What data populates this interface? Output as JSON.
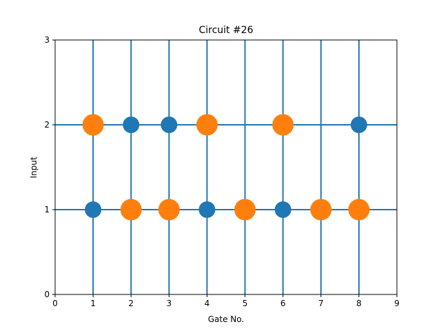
{
  "chart_data": {
    "type": "scatter",
    "title": "Circuit #26",
    "xlabel": "Gate No.",
    "ylabel": "Input",
    "xlim": [
      0,
      9
    ],
    "ylim": [
      0,
      3
    ],
    "xticks": [
      "0",
      "1",
      "2",
      "3",
      "4",
      "5",
      "6",
      "7",
      "8",
      "9"
    ],
    "yticks": [
      "0",
      "1",
      "2",
      "3"
    ],
    "wire_color": "#1f77b4",
    "wires": {
      "vertical_x": [
        1,
        2,
        3,
        4,
        5,
        6,
        7,
        8
      ],
      "horizontal_y": [
        1,
        2
      ]
    },
    "series": [
      {
        "color": "#1f77b4",
        "marker_size": "small",
        "points": [
          {
            "x": 1,
            "y": 1
          },
          {
            "x": 2,
            "y": 2
          },
          {
            "x": 3,
            "y": 2
          },
          {
            "x": 4,
            "y": 1
          },
          {
            "x": 6,
            "y": 1
          },
          {
            "x": 8,
            "y": 2
          }
        ]
      },
      {
        "color": "#ff7f0e",
        "marker_size": "large",
        "points": [
          {
            "x": 1,
            "y": 2
          },
          {
            "x": 2,
            "y": 1
          },
          {
            "x": 3,
            "y": 1
          },
          {
            "x": 4,
            "y": 2
          },
          {
            "x": 5,
            "y": 1
          },
          {
            "x": 6,
            "y": 2
          },
          {
            "x": 7,
            "y": 1
          },
          {
            "x": 8,
            "y": 1
          }
        ]
      }
    ],
    "grid": false,
    "legend": "none"
  }
}
